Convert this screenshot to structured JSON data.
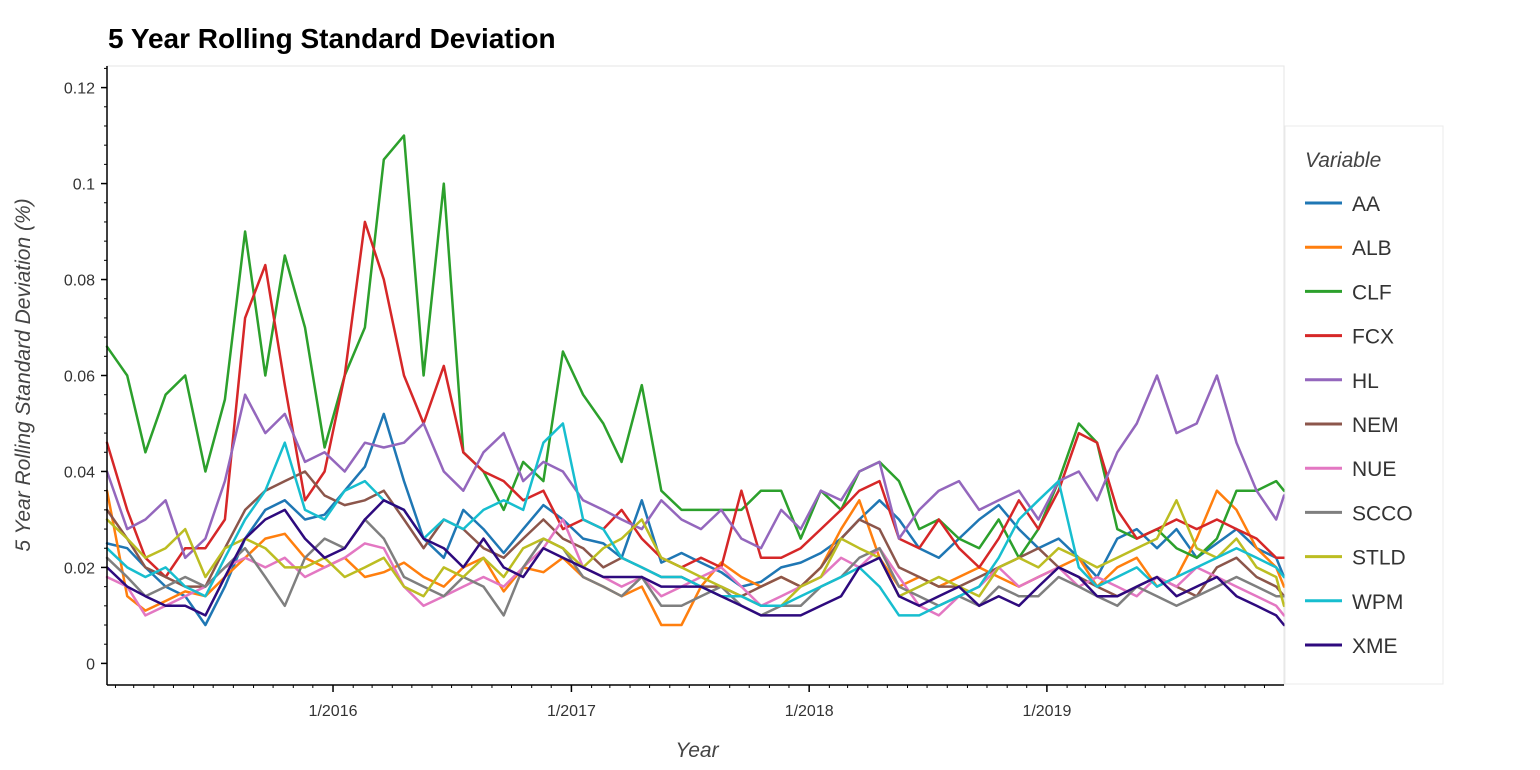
{
  "chart_data": {
    "type": "line",
    "title": "5 Year Rolling Standard Deviation",
    "xlabel": "Year",
    "ylabel": "5 Year Rolling Standard Deviation (%)",
    "ylim": [
      -0.0045,
      0.1245
    ],
    "xlim": [
      "2015-01-19",
      "2019-12-31"
    ],
    "x_ticks": [
      {
        "date": "2016-01-01",
        "label": "1/2016"
      },
      {
        "date": "2017-01-01",
        "label": "1/2017"
      },
      {
        "date": "2018-01-01",
        "label": "1/2018"
      },
      {
        "date": "2019-01-01",
        "label": "1/2019"
      }
    ],
    "y_ticks": [
      {
        "value": 0,
        "label": "0"
      },
      {
        "value": 0.02,
        "label": "0.02"
      },
      {
        "value": 0.04,
        "label": "0.04"
      },
      {
        "value": 0.06,
        "label": "0.06"
      },
      {
        "value": 0.08,
        "label": "0.08"
      },
      {
        "value": 0.1,
        "label": "0.1"
      },
      {
        "value": 0.12,
        "label": "0.12"
      }
    ],
    "legend": {
      "title": "Variable",
      "position": "right"
    },
    "grid": false,
    "x": [
      "2015-01-19",
      "2015-02-19",
      "2015-03-19",
      "2015-04-19",
      "2015-05-19",
      "2015-06-19",
      "2015-07-19",
      "2015-08-19",
      "2015-09-19",
      "2015-10-19",
      "2015-11-19",
      "2015-12-19",
      "2016-01-19",
      "2016-02-19",
      "2016-03-19",
      "2016-04-19",
      "2016-05-19",
      "2016-06-19",
      "2016-07-19",
      "2016-08-19",
      "2016-09-19",
      "2016-10-19",
      "2016-11-19",
      "2016-12-19",
      "2017-01-19",
      "2017-02-19",
      "2017-03-19",
      "2017-04-19",
      "2017-05-19",
      "2017-06-19",
      "2017-07-19",
      "2017-08-19",
      "2017-09-19",
      "2017-10-19",
      "2017-11-19",
      "2017-12-19",
      "2018-01-19",
      "2018-02-19",
      "2018-03-19",
      "2018-04-19",
      "2018-05-19",
      "2018-06-19",
      "2018-07-19",
      "2018-08-19",
      "2018-09-19",
      "2018-10-19",
      "2018-11-19",
      "2018-12-19",
      "2019-01-19",
      "2019-02-19",
      "2019-03-19",
      "2019-04-19",
      "2019-05-19",
      "2019-06-19",
      "2019-07-19",
      "2019-08-19",
      "2019-09-19",
      "2019-10-19",
      "2019-11-19",
      "2019-12-19",
      "2019-12-31"
    ],
    "series": [
      {
        "name": "AA",
        "color": "#1f77b4",
        "values": [
          0.025,
          0.024,
          0.02,
          0.016,
          0.014,
          0.008,
          0.016,
          0.026,
          0.032,
          0.034,
          0.03,
          0.031,
          0.036,
          0.041,
          0.052,
          0.038,
          0.026,
          0.022,
          0.032,
          0.028,
          0.023,
          0.028,
          0.033,
          0.03,
          0.026,
          0.025,
          0.022,
          0.034,
          0.021,
          0.023,
          0.021,
          0.019,
          0.016,
          0.017,
          0.02,
          0.021,
          0.023,
          0.026,
          0.03,
          0.034,
          0.03,
          0.024,
          0.022,
          0.026,
          0.03,
          0.033,
          0.028,
          0.024,
          0.026,
          0.022,
          0.018,
          0.026,
          0.028,
          0.024,
          0.028,
          0.022,
          0.025,
          0.028,
          0.024,
          0.022,
          0.018
        ]
      },
      {
        "name": "ALB",
        "color": "#ff7f0e",
        "values": [
          0.036,
          0.014,
          0.011,
          0.013,
          0.015,
          0.014,
          0.018,
          0.022,
          0.026,
          0.027,
          0.022,
          0.02,
          0.022,
          0.018,
          0.019,
          0.021,
          0.018,
          0.016,
          0.02,
          0.022,
          0.015,
          0.02,
          0.019,
          0.022,
          0.018,
          0.016,
          0.014,
          0.016,
          0.008,
          0.008,
          0.016,
          0.021,
          0.018,
          0.016,
          0.018,
          0.016,
          0.02,
          0.028,
          0.034,
          0.022,
          0.016,
          0.018,
          0.016,
          0.018,
          0.02,
          0.018,
          0.016,
          0.018,
          0.02,
          0.022,
          0.016,
          0.02,
          0.022,
          0.016,
          0.018,
          0.026,
          0.036,
          0.032,
          0.024,
          0.02,
          0.016
        ]
      },
      {
        "name": "CLF",
        "color": "#2ca02c",
        "values": [
          0.066,
          0.06,
          0.044,
          0.056,
          0.06,
          0.04,
          0.055,
          0.09,
          0.06,
          0.085,
          0.07,
          0.045,
          0.06,
          0.07,
          0.105,
          0.11,
          0.06,
          0.1,
          0.044,
          0.04,
          0.032,
          0.042,
          0.038,
          0.065,
          0.056,
          0.05,
          0.042,
          0.058,
          0.036,
          0.032,
          0.032,
          0.032,
          0.032,
          0.036,
          0.036,
          0.026,
          0.036,
          0.032,
          0.04,
          0.042,
          0.038,
          0.028,
          0.03,
          0.026,
          0.024,
          0.03,
          0.022,
          0.028,
          0.038,
          0.05,
          0.046,
          0.028,
          0.026,
          0.028,
          0.024,
          0.022,
          0.026,
          0.036,
          0.036,
          0.038,
          0.036
        ]
      },
      {
        "name": "FCX",
        "color": "#d62728",
        "values": [
          0.046,
          0.032,
          0.022,
          0.018,
          0.024,
          0.024,
          0.03,
          0.072,
          0.083,
          0.058,
          0.034,
          0.04,
          0.06,
          0.092,
          0.08,
          0.06,
          0.05,
          0.062,
          0.044,
          0.04,
          0.038,
          0.034,
          0.036,
          0.028,
          0.03,
          0.028,
          0.032,
          0.026,
          0.022,
          0.02,
          0.022,
          0.02,
          0.036,
          0.022,
          0.022,
          0.024,
          0.028,
          0.032,
          0.036,
          0.038,
          0.026,
          0.024,
          0.03,
          0.024,
          0.02,
          0.026,
          0.034,
          0.028,
          0.036,
          0.048,
          0.046,
          0.032,
          0.026,
          0.028,
          0.03,
          0.028,
          0.03,
          0.028,
          0.026,
          0.022,
          0.022
        ]
      },
      {
        "name": "HL",
        "color": "#9467bd",
        "values": [
          0.04,
          0.028,
          0.03,
          0.034,
          0.022,
          0.026,
          0.038,
          0.056,
          0.048,
          0.052,
          0.042,
          0.044,
          0.04,
          0.046,
          0.045,
          0.046,
          0.05,
          0.04,
          0.036,
          0.044,
          0.048,
          0.038,
          0.042,
          0.04,
          0.034,
          0.032,
          0.03,
          0.028,
          0.034,
          0.03,
          0.028,
          0.032,
          0.026,
          0.024,
          0.032,
          0.028,
          0.036,
          0.034,
          0.04,
          0.042,
          0.026,
          0.032,
          0.036,
          0.038,
          0.032,
          0.034,
          0.036,
          0.03,
          0.038,
          0.04,
          0.034,
          0.044,
          0.05,
          0.06,
          0.048,
          0.05,
          0.06,
          0.046,
          0.036,
          0.03,
          0.035
        ]
      },
      {
        "name": "NEM",
        "color": "#8c564b",
        "values": [
          0.032,
          0.026,
          0.02,
          0.018,
          0.016,
          0.016,
          0.024,
          0.032,
          0.036,
          0.038,
          0.04,
          0.035,
          0.033,
          0.034,
          0.036,
          0.03,
          0.024,
          0.03,
          0.028,
          0.024,
          0.022,
          0.026,
          0.03,
          0.026,
          0.024,
          0.02,
          0.022,
          0.02,
          0.018,
          0.018,
          0.016,
          0.016,
          0.014,
          0.016,
          0.018,
          0.016,
          0.02,
          0.026,
          0.03,
          0.028,
          0.02,
          0.018,
          0.016,
          0.016,
          0.018,
          0.02,
          0.022,
          0.024,
          0.02,
          0.018,
          0.016,
          0.014,
          0.016,
          0.018,
          0.016,
          0.014,
          0.02,
          0.022,
          0.018,
          0.016,
          0.014
        ]
      },
      {
        "name": "NUE",
        "color": "#e377c2",
        "values": [
          0.018,
          0.016,
          0.01,
          0.012,
          0.014,
          0.016,
          0.02,
          0.022,
          0.02,
          0.022,
          0.018,
          0.02,
          0.022,
          0.025,
          0.024,
          0.016,
          0.012,
          0.014,
          0.016,
          0.018,
          0.016,
          0.02,
          0.024,
          0.03,
          0.02,
          0.018,
          0.016,
          0.018,
          0.014,
          0.016,
          0.018,
          0.02,
          0.016,
          0.012,
          0.014,
          0.016,
          0.018,
          0.022,
          0.02,
          0.024,
          0.018,
          0.012,
          0.01,
          0.014,
          0.016,
          0.02,
          0.016,
          0.018,
          0.02,
          0.016,
          0.018,
          0.016,
          0.014,
          0.018,
          0.016,
          0.02,
          0.018,
          0.016,
          0.014,
          0.012,
          0.01
        ]
      },
      {
        "name": "SCCO",
        "color": "#7f7f7f",
        "values": [
          0.022,
          0.018,
          0.014,
          0.016,
          0.018,
          0.016,
          0.02,
          0.024,
          0.018,
          0.012,
          0.022,
          0.026,
          0.024,
          0.03,
          0.026,
          0.018,
          0.016,
          0.014,
          0.018,
          0.016,
          0.01,
          0.02,
          0.026,
          0.024,
          0.018,
          0.016,
          0.014,
          0.018,
          0.012,
          0.012,
          0.014,
          0.016,
          0.012,
          0.01,
          0.012,
          0.012,
          0.016,
          0.018,
          0.022,
          0.024,
          0.016,
          0.014,
          0.012,
          0.014,
          0.012,
          0.016,
          0.014,
          0.014,
          0.018,
          0.016,
          0.014,
          0.012,
          0.016,
          0.014,
          0.012,
          0.014,
          0.016,
          0.018,
          0.016,
          0.014,
          0.014
        ]
      },
      {
        "name": "STLD",
        "color": "#bcbd22",
        "values": [
          0.03,
          0.026,
          0.022,
          0.024,
          0.028,
          0.018,
          0.024,
          0.026,
          0.024,
          0.02,
          0.02,
          0.022,
          0.018,
          0.02,
          0.022,
          0.016,
          0.014,
          0.02,
          0.018,
          0.022,
          0.018,
          0.024,
          0.026,
          0.024,
          0.02,
          0.024,
          0.026,
          0.03,
          0.022,
          0.02,
          0.018,
          0.016,
          0.014,
          0.012,
          0.012,
          0.016,
          0.018,
          0.026,
          0.024,
          0.022,
          0.014,
          0.016,
          0.018,
          0.016,
          0.014,
          0.02,
          0.022,
          0.02,
          0.024,
          0.022,
          0.02,
          0.022,
          0.024,
          0.026,
          0.034,
          0.024,
          0.022,
          0.026,
          0.02,
          0.018,
          0.012
        ]
      },
      {
        "name": "WPM",
        "color": "#17becf",
        "values": [
          0.024,
          0.02,
          0.018,
          0.02,
          0.016,
          0.014,
          0.022,
          0.03,
          0.036,
          0.046,
          0.032,
          0.03,
          0.036,
          0.038,
          0.034,
          0.032,
          0.026,
          0.03,
          0.028,
          0.032,
          0.034,
          0.032,
          0.046,
          0.05,
          0.03,
          0.028,
          0.022,
          0.02,
          0.018,
          0.018,
          0.016,
          0.014,
          0.014,
          0.012,
          0.012,
          0.014,
          0.016,
          0.018,
          0.02,
          0.016,
          0.01,
          0.01,
          0.012,
          0.014,
          0.016,
          0.022,
          0.03,
          0.034,
          0.038,
          0.02,
          0.016,
          0.018,
          0.02,
          0.016,
          0.018,
          0.02,
          0.022,
          0.024,
          0.022,
          0.02,
          0.018
        ]
      },
      {
        "name": "XME",
        "color": "#2e0a7e",
        "values": [
          0.02,
          0.016,
          0.014,
          0.012,
          0.012,
          0.01,
          0.018,
          0.026,
          0.03,
          0.032,
          0.026,
          0.022,
          0.024,
          0.03,
          0.034,
          0.032,
          0.026,
          0.024,
          0.02,
          0.026,
          0.02,
          0.018,
          0.024,
          0.022,
          0.02,
          0.018,
          0.018,
          0.018,
          0.016,
          0.016,
          0.016,
          0.014,
          0.012,
          0.01,
          0.01,
          0.01,
          0.012,
          0.014,
          0.02,
          0.022,
          0.014,
          0.012,
          0.014,
          0.016,
          0.012,
          0.014,
          0.012,
          0.016,
          0.02,
          0.018,
          0.014,
          0.014,
          0.016,
          0.018,
          0.014,
          0.016,
          0.018,
          0.014,
          0.012,
          0.01,
          0.008
        ]
      }
    ]
  }
}
